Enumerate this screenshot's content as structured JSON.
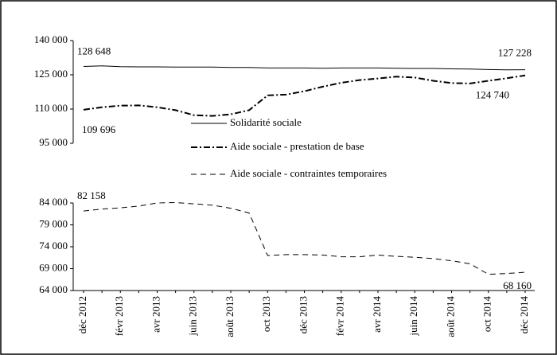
{
  "chart_data": [
    {
      "type": "line",
      "ylim": [
        95000,
        140000
      ],
      "yticks": [
        {
          "value": 95000,
          "label": "95 000"
        },
        {
          "value": 110000,
          "label": "110 000"
        },
        {
          "value": 125000,
          "label": "125 000"
        },
        {
          "value": 140000,
          "label": "140 000"
        }
      ],
      "series": [
        {
          "name": "Solidarité sociale",
          "color": "#000000",
          "dash": "solid",
          "values": [
            128648,
            128900,
            128600,
            128500,
            128500,
            128400,
            128400,
            128400,
            128200,
            128200,
            128000,
            128000,
            128000,
            127900,
            128000,
            128000,
            128000,
            127900,
            127800,
            127800,
            127600,
            127500,
            127300,
            127200,
            127228
          ],
          "value_labels": [
            "128 648",
            null,
            null,
            null,
            null,
            null,
            null,
            null,
            null,
            null,
            null,
            null,
            null,
            null,
            null,
            null,
            null,
            null,
            null,
            null,
            null,
            null,
            null,
            null,
            "127 228"
          ]
        },
        {
          "name": "Aide sociale - prestation de base",
          "color": "#000000",
          "dash": "dashdot",
          "values": [
            109696,
            110800,
            111500,
            111600,
            110800,
            109500,
            107300,
            107000,
            107700,
            109500,
            116000,
            116300,
            117800,
            119800,
            121500,
            122700,
            123400,
            124200,
            123800,
            122400,
            121400,
            121200,
            122400,
            123500,
            124740
          ],
          "value_labels": [
            "109 696",
            null,
            null,
            null,
            null,
            null,
            null,
            null,
            null,
            null,
            null,
            null,
            null,
            null,
            null,
            null,
            null,
            null,
            null,
            null,
            null,
            null,
            null,
            null,
            "124 740"
          ]
        }
      ]
    },
    {
      "type": "line",
      "ylim": [
        64000,
        84000
      ],
      "yticks": [
        {
          "value": 64000,
          "label": "64 000"
        },
        {
          "value": 69000,
          "label": "69 000"
        },
        {
          "value": 74000,
          "label": "74 000"
        },
        {
          "value": 79000,
          "label": "79 000"
        },
        {
          "value": 84000,
          "label": "84 000"
        }
      ],
      "categories": [
        "déc 2012",
        null,
        "févr 2013",
        null,
        "avr 2013",
        null,
        "juin 2013",
        null,
        "août 2013",
        null,
        "oct 2013",
        null,
        "déc 2013",
        null,
        "févr 2014",
        null,
        "avr 2014",
        null,
        "juin 2014",
        null,
        "août 2014",
        null,
        "oct 2014",
        null,
        "déc 2014"
      ],
      "series": [
        {
          "name": "Aide sociale - contraintes temporaires",
          "color": "#000000",
          "dash": "dashed",
          "values": [
            82158,
            82600,
            82900,
            83300,
            84000,
            84100,
            83800,
            83500,
            82800,
            81700,
            72000,
            72200,
            72200,
            72100,
            71700,
            71700,
            72100,
            71800,
            71600,
            71300,
            70800,
            70100,
            67700,
            67900,
            68160
          ],
          "value_labels": [
            "82 158",
            null,
            null,
            null,
            null,
            null,
            null,
            null,
            null,
            null,
            null,
            null,
            null,
            null,
            null,
            null,
            null,
            null,
            null,
            null,
            null,
            null,
            null,
            null,
            "68 160"
          ]
        }
      ]
    }
  ]
}
